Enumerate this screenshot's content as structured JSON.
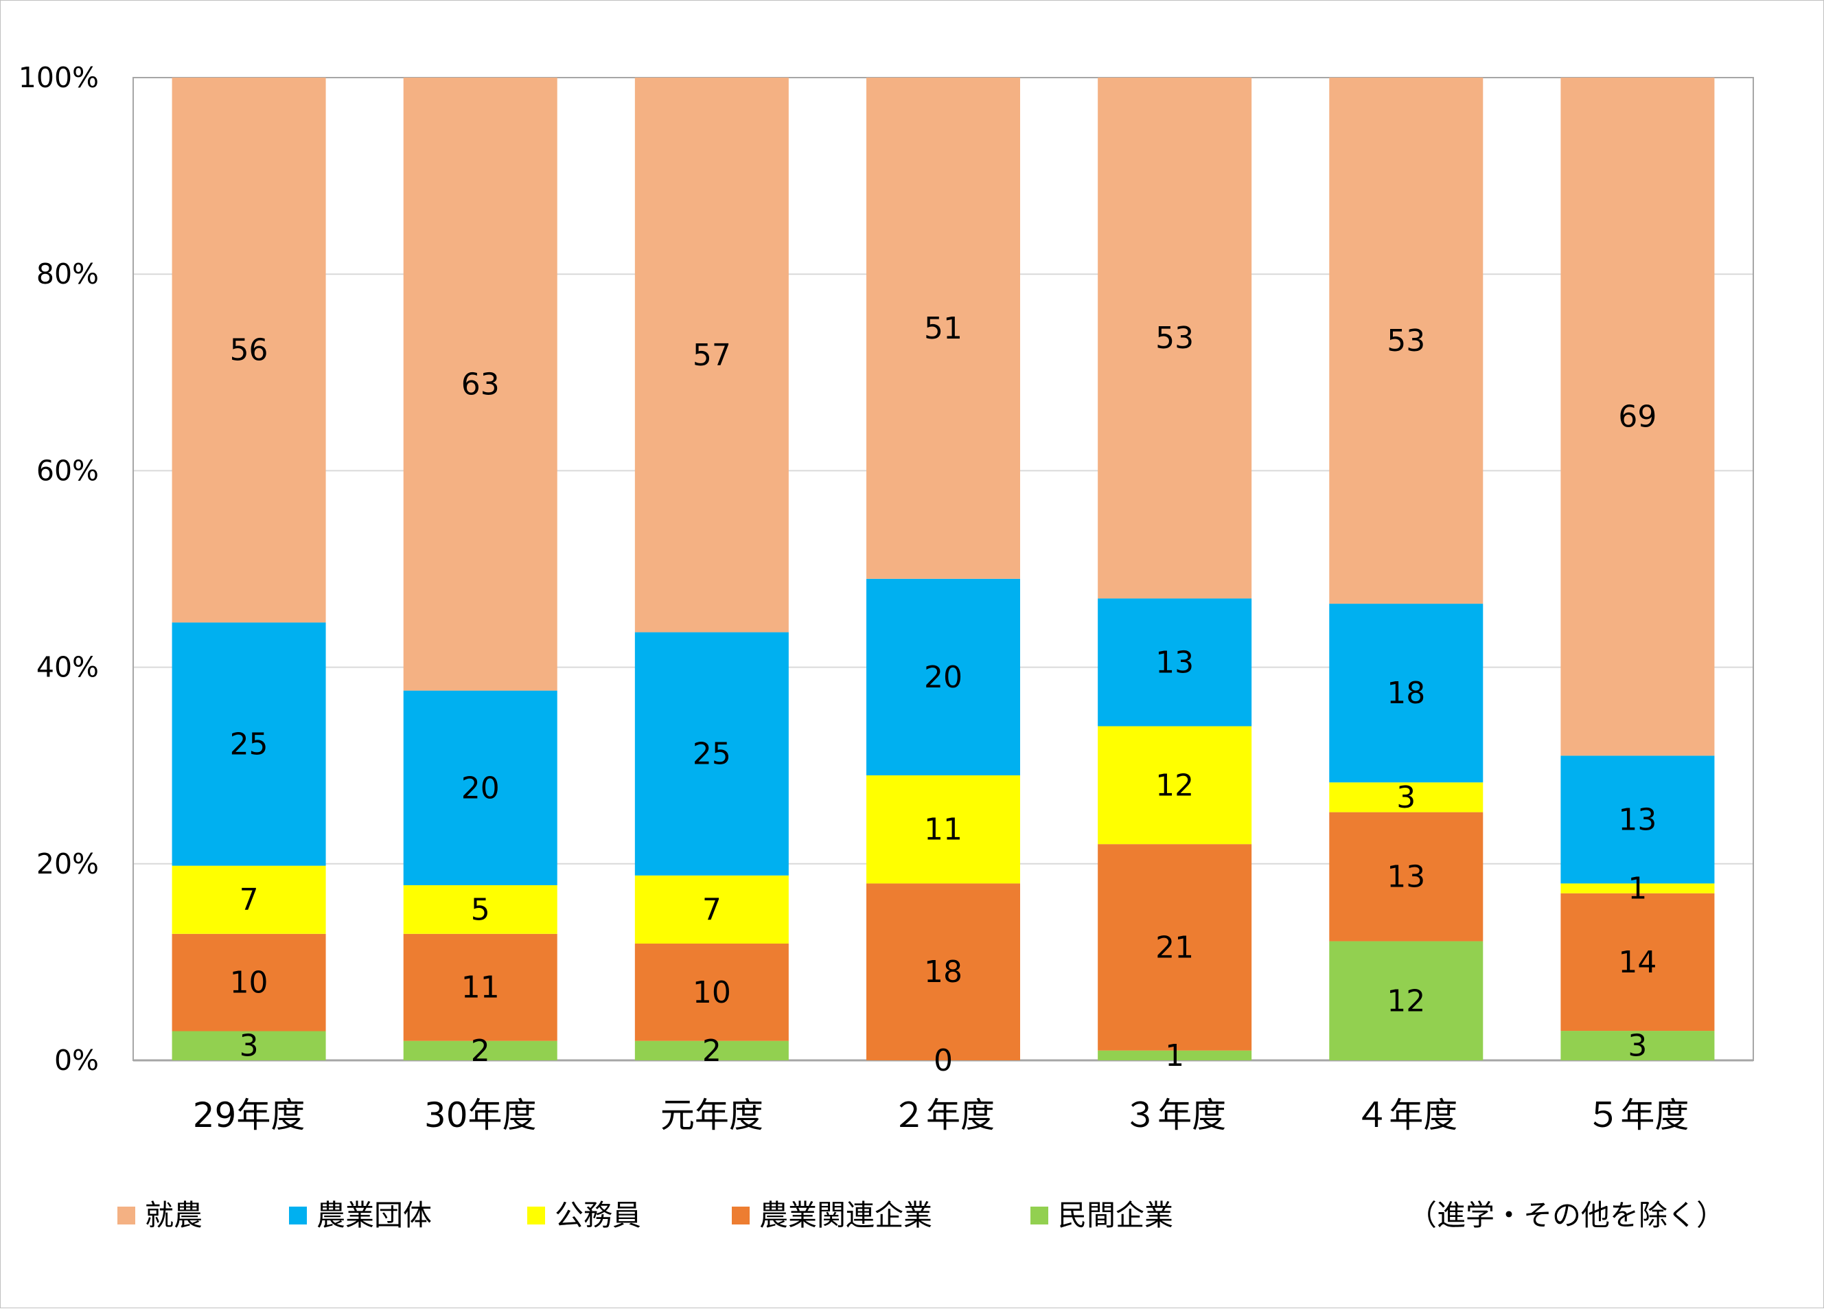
{
  "chart_data": {
    "type": "bar",
    "stacked": true,
    "normalized": true,
    "categories": [
      "29年度",
      "30年度",
      "元年度",
      "２年度",
      "３年度",
      "４年度",
      "５年度"
    ],
    "series": [
      {
        "name": "民間企業",
        "color": "#92d050",
        "values": [
          3,
          2,
          2,
          0,
          1,
          12,
          3
        ]
      },
      {
        "name": "農業関連企業",
        "color": "#ed7d31",
        "values": [
          10,
          11,
          10,
          18,
          21,
          13,
          14
        ]
      },
      {
        "name": "公務員",
        "color": "#ffff00",
        "values": [
          7,
          5,
          7,
          11,
          12,
          3,
          1
        ]
      },
      {
        "name": "農業団体",
        "color": "#00b0f0",
        "values": [
          25,
          20,
          25,
          20,
          13,
          18,
          13
        ]
      },
      {
        "name": "就農",
        "color": "#f4b183",
        "values": [
          56,
          63,
          57,
          51,
          53,
          53,
          69
        ]
      }
    ],
    "legend_order": [
      "就農",
      "農業団体",
      "公務員",
      "農業関連企業",
      "民間企業"
    ],
    "ylim": [
      0,
      100
    ],
    "yticks": [
      "0%",
      "20%",
      "40%",
      "60%",
      "80%",
      "100%"
    ],
    "grid": true,
    "legend_position": "bottom",
    "note": "（進学・その他を除く）"
  }
}
